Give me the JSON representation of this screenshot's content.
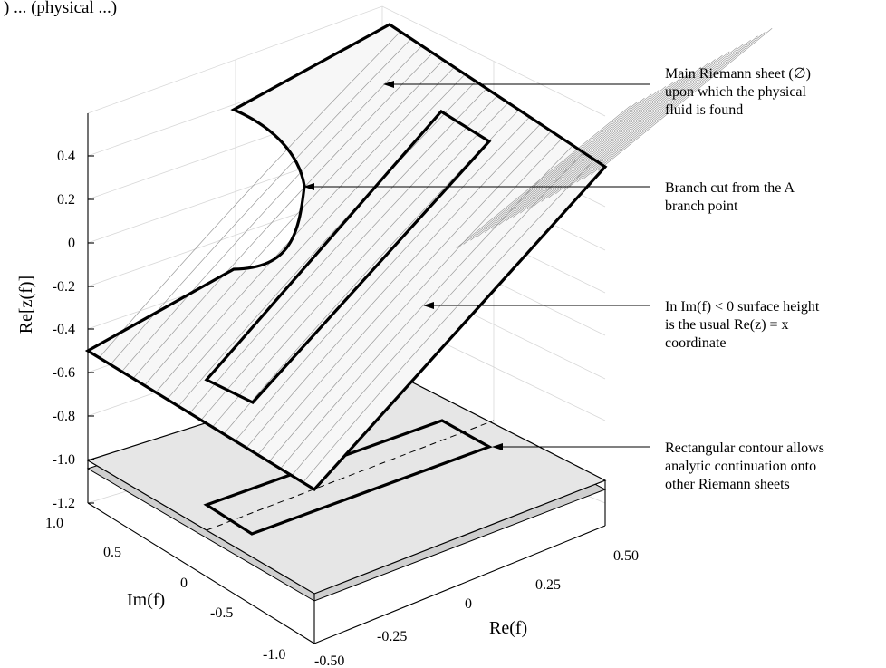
{
  "title_fragment": ") ... (physical ...)",
  "axes": {
    "z_label": "Re[z(f)]",
    "x_label": "Re(f)",
    "y_label": "Im(f)",
    "z_ticks": [
      "0.4",
      "0.2",
      "0",
      "-0.2",
      "-0.4",
      "-0.6",
      "-0.8",
      "-1.0",
      "-1.2"
    ],
    "x_ticks": [
      "0.50",
      "0.25",
      "0",
      "-0.25",
      "-0.50"
    ],
    "y_ticks": [
      "1.0",
      "0.5",
      "0",
      "-0.5",
      "-1.0"
    ]
  },
  "annotations": [
    {
      "lines": [
        "Main Riemann sheet (∅)",
        "upon which the physical",
        "fluid is found"
      ]
    },
    {
      "lines": [
        "Branch cut from the A",
        "branch point"
      ]
    },
    {
      "lines": [
        "In  Im(f) < 0 surface height",
        "is the usual Re(z) = x",
        "coordinate"
      ]
    },
    {
      "lines": [
        "Rectangular contour allows",
        "analytic continuation onto",
        "other Riemann sheets"
      ]
    }
  ]
}
